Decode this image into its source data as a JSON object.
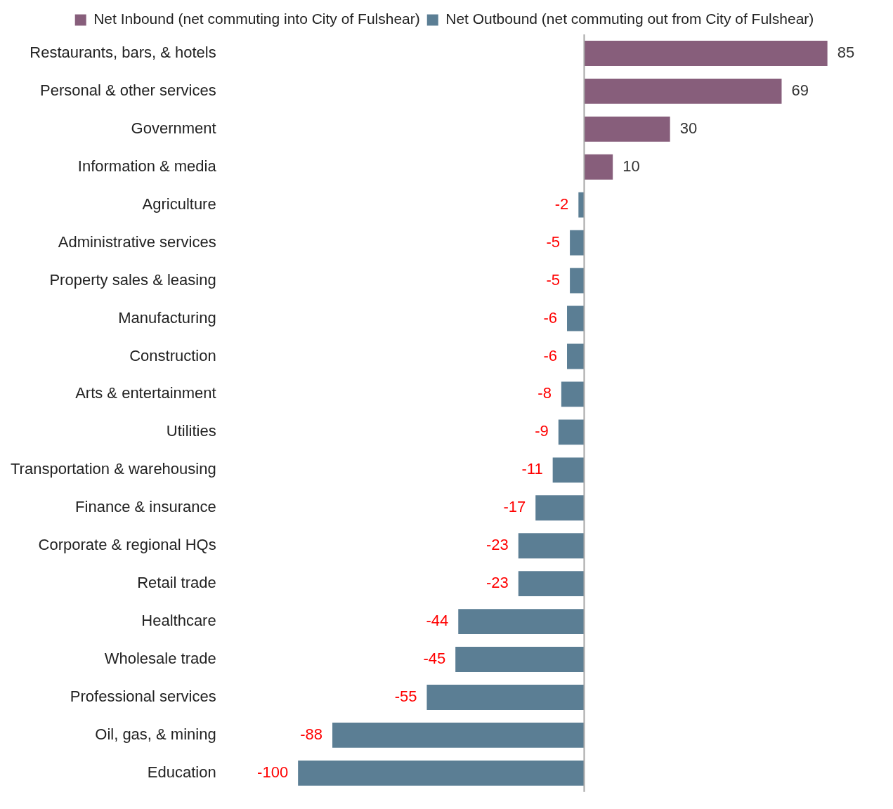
{
  "chart_data": {
    "type": "bar",
    "orientation": "horizontal",
    "stacked": true,
    "categories": [
      "Restaurants, bars, & hotels",
      "Personal & other services",
      "Government",
      "Information & media",
      "Agriculture",
      "Administrative services",
      "Property sales & leasing",
      "Manufacturing",
      "Construction",
      "Arts & entertainment",
      "Utilities",
      "Transportation & warehousing",
      "Finance & insurance",
      "Corporate & regional HQs",
      "Retail trade",
      "Healthcare",
      "Wholesale trade",
      "Professional services",
      "Oil, gas, & mining",
      "Education"
    ],
    "series": [
      {
        "name": "Net Inbound (net commuting into City of Fulshear)",
        "color": "#875e7b",
        "values": [
          85,
          69,
          30,
          10,
          null,
          null,
          null,
          null,
          null,
          null,
          null,
          null,
          null,
          null,
          null,
          null,
          null,
          null,
          null,
          null
        ]
      },
      {
        "name": "Net Outbound (net commuting out from City of Fulshear)",
        "color": "#5b7e94",
        "values": [
          null,
          null,
          null,
          null,
          -2,
          -5,
          -5,
          -6,
          -6,
          -8,
          -9,
          -11,
          -17,
          -23,
          -23,
          -44,
          -45,
          -55,
          -88,
          -100
        ]
      }
    ],
    "data_labels": true,
    "legend": "top",
    "grid": false,
    "tick_labels": "y"
  }
}
